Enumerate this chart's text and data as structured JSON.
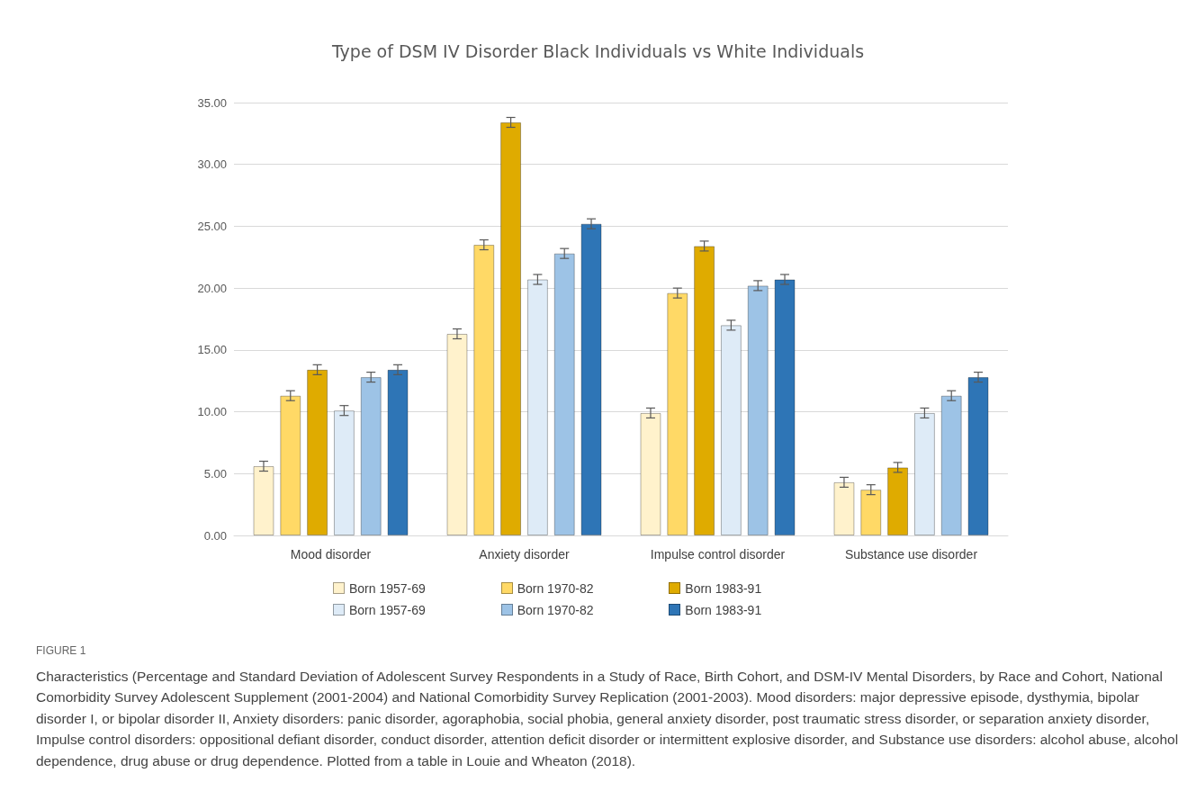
{
  "chart_data": {
    "type": "bar",
    "title": "Type of DSM IV Disorder Black Individuals vs White Individuals",
    "categories": [
      "Mood disorder",
      "Anxiety disorder",
      "Impulse control disorder",
      "Substance use disorder"
    ],
    "series": [
      {
        "name": "Born 1957-69",
        "color": "#fff2cc",
        "values": [
          5.6,
          16.3,
          9.9,
          4.3
        ],
        "errors": [
          0.4,
          0.4,
          0.4,
          0.4
        ]
      },
      {
        "name": "Born 1970-82",
        "color": "#ffd966",
        "values": [
          11.3,
          23.5,
          19.6,
          3.7
        ],
        "errors": [
          0.4,
          0.4,
          0.4,
          0.4
        ]
      },
      {
        "name": "Born 1983-91",
        "color": "#dfab00",
        "values": [
          13.4,
          33.4,
          23.4,
          5.5
        ],
        "errors": [
          0.4,
          0.4,
          0.4,
          0.4
        ]
      },
      {
        "name": "Born 1957-69",
        "color": "#deebf7",
        "values": [
          10.1,
          20.7,
          17.0,
          9.9
        ],
        "errors": [
          0.4,
          0.4,
          0.4,
          0.4
        ]
      },
      {
        "name": "Born 1970-82",
        "color": "#9dc3e6",
        "values": [
          12.8,
          22.8,
          20.2,
          11.3
        ],
        "errors": [
          0.4,
          0.4,
          0.4,
          0.4
        ]
      },
      {
        "name": "Born 1983-91",
        "color": "#2e75b6",
        "values": [
          13.4,
          25.2,
          20.7,
          12.8
        ],
        "errors": [
          0.4,
          0.4,
          0.4,
          0.4
        ]
      }
    ],
    "ylim": [
      0,
      35
    ],
    "yticks": [
      {
        "value": 0,
        "label": "0.00"
      },
      {
        "value": 5,
        "label": "5.00"
      },
      {
        "value": 10,
        "label": "10.00"
      },
      {
        "value": 15,
        "label": "15.00"
      },
      {
        "value": 20,
        "label": "20.00"
      },
      {
        "value": 25,
        "label": "25.00"
      },
      {
        "value": 30,
        "label": "30.00"
      },
      {
        "value": 35,
        "label": "35.00"
      }
    ],
    "grid": "y",
    "legend": "bottom",
    "annotations": [
      "FIGURE 1",
      "Characteristics (Percentage and Standard Deviation of Adolescent Survey Respondents in a Study of Race, Birth Cohort, and DSM-IV Mental Disorders, by Race and Cohort, National Comorbidity Survey Adolescent Supplement (2001-2004) and National Comorbidity Survey Replication (2001-2003). Mood disorders: major depressive episode, dysthymia, bipolar disorder I, or bipolar disorder II, Anxiety disorders: panic disorder, agoraphobia, social phobia, general anxiety disorder, post traumatic stress disorder, or separation anxiety disorder, Impulse control disorders: oppositional defiant disorder, conduct disorder, attention deficit disorder or intermittent explosive disorder, and Substance use disorders: alcohol abuse, alcohol dependence, drug abuse or drug dependence. Plotted from a table in Louie and Wheaton (2018)."
    ]
  }
}
